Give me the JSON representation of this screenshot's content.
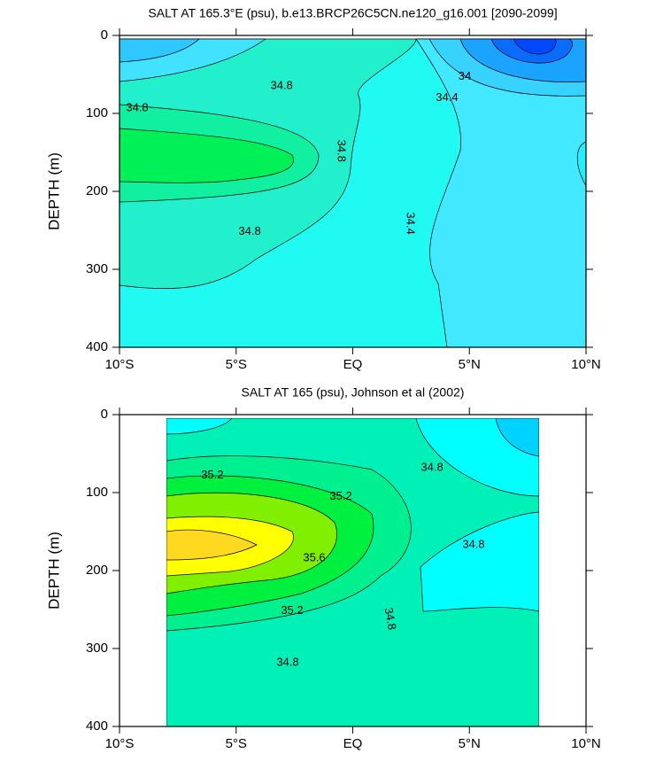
{
  "chart_data": [
    {
      "type": "contour",
      "title": "SALT AT 165.3°E (psu), b.e13.BRCP26C5CN.ne120_g16.001 [2090-2099]",
      "ylabel": "DEPTH (m)",
      "xlim": [
        -10,
        10
      ],
      "ylim": [
        400,
        0
      ],
      "xticks": [
        {
          "value": -10,
          "label": "10°S"
        },
        {
          "value": -5,
          "label": "5°S"
        },
        {
          "value": 0,
          "label": "EQ"
        },
        {
          "value": 5,
          "label": "5°N"
        },
        {
          "value": 10,
          "label": "10°N"
        }
      ],
      "yticks": [
        0,
        100,
        200,
        300,
        400
      ],
      "contour_labels": [
        {
          "value": 34.8,
          "x": -3.05,
          "y": 65
        },
        {
          "value": 34.8,
          "x": -9.24,
          "y": 93
        },
        {
          "value": 34.8,
          "x": -0.51,
          "y": 148
        },
        {
          "value": 34.8,
          "x": -4.42,
          "y": 252
        },
        {
          "value": 34.4,
          "x": 4.04,
          "y": 80
        },
        {
          "value": 34.4,
          "x": 2.45,
          "y": 241
        },
        {
          "value": 34,
          "x": 4.8,
          "y": 53
        }
      ]
    },
    {
      "type": "contour",
      "title": "SALT AT 165 (psu), Johnson et al (2002)",
      "ylabel": "DEPTH (m)",
      "xlim": [
        -10,
        10
      ],
      "ylim": [
        400,
        0
      ],
      "xticks": [
        {
          "value": -10,
          "label": "10°S"
        },
        {
          "value": -5,
          "label": "5°S"
        },
        {
          "value": 0,
          "label": "EQ"
        },
        {
          "value": 5,
          "label": "5°N"
        },
        {
          "value": 10,
          "label": "10°N"
        }
      ],
      "yticks": [
        0,
        100,
        200,
        300,
        400
      ],
      "contour_labels": [
        {
          "value": 35.2,
          "x": -6.02,
          "y": 78
        },
        {
          "value": 35.2,
          "x": -0.51,
          "y": 105
        },
        {
          "value": 35.6,
          "x": -1.65,
          "y": 184
        },
        {
          "value": 35.2,
          "x": -2.6,
          "y": 252
        },
        {
          "value": 34.8,
          "x": 3.4,
          "y": 68
        },
        {
          "value": 34.8,
          "x": 5.18,
          "y": 167
        },
        {
          "value": 34.8,
          "x": 1.58,
          "y": 262
        },
        {
          "value": 34.8,
          "x": -2.79,
          "y": 318
        }
      ]
    }
  ]
}
